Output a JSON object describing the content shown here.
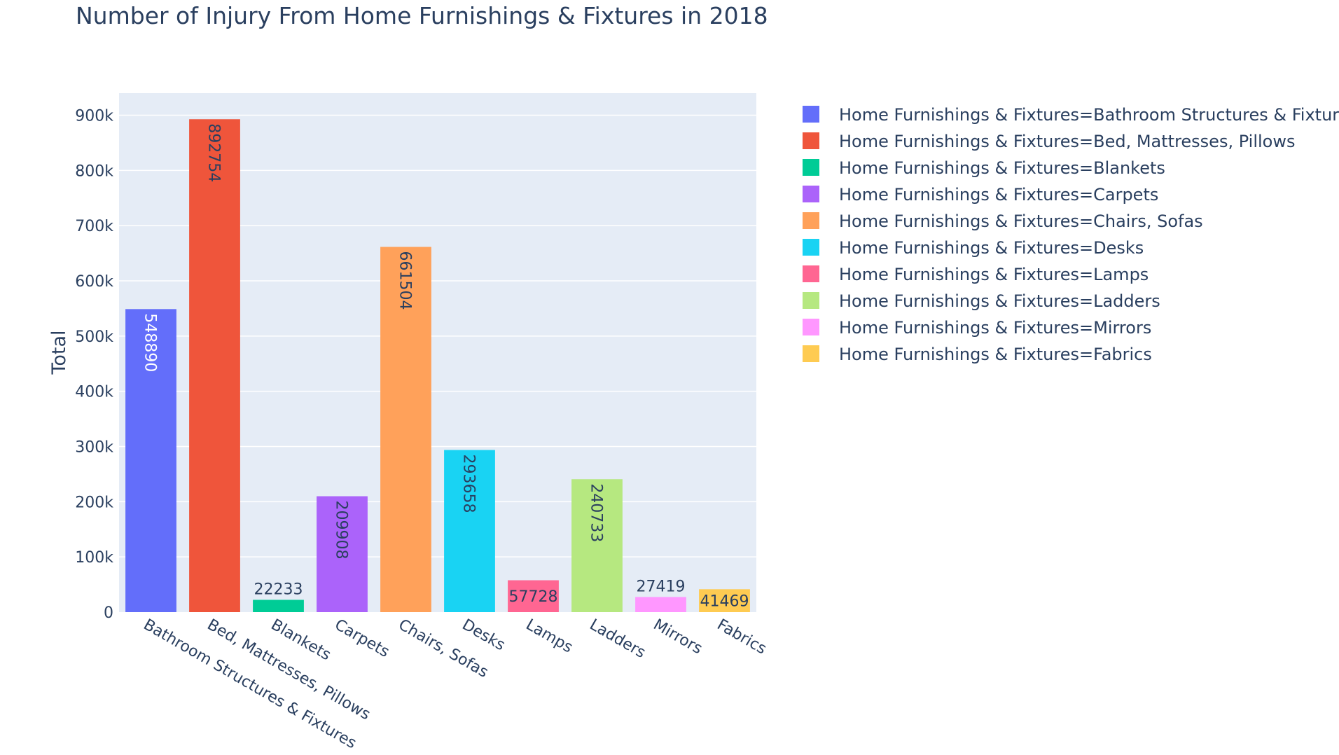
{
  "chart_data": {
    "type": "bar",
    "title": "Number of Injury From Home Furnishings & Fixtures in 2018",
    "xlabel": "",
    "ylabel": "Total",
    "ylim": [
      0,
      940000
    ],
    "yticks": [
      0,
      100000,
      200000,
      300000,
      400000,
      500000,
      600000,
      700000,
      800000,
      900000
    ],
    "ytick_labels": [
      "0",
      "100k",
      "200k",
      "300k",
      "400k",
      "500k",
      "600k",
      "700k",
      "800k",
      "900k"
    ],
    "grid": true,
    "legend_position": "right",
    "categories": [
      "Bathroom Structures & Fixtures",
      "Bed, Mattresses, Pillows",
      "Blankets",
      "Carpets",
      "Chairs, Sofas",
      "Desks",
      "Lamps",
      "Ladders",
      "Mirrors",
      "Fabrics"
    ],
    "values": [
      548890,
      892754,
      22233,
      209908,
      661504,
      293658,
      57728,
      240733,
      27419,
      41469
    ],
    "data_labels": [
      "548890",
      "892754",
      "22233",
      "209908",
      "661504",
      "293658",
      "57728",
      "240733",
      "27419",
      "41469"
    ],
    "colors": [
      "#636efa",
      "#EF553B",
      "#00cc96",
      "#ab63fa",
      "#FFA15A",
      "#19d3f3",
      "#FF6692",
      "#B6E880",
      "#FF97FF",
      "#FECB52"
    ],
    "label_colors": [
      "#ffffff",
      "#2a3f5f",
      "#2a3f5f",
      "#2a3f5f",
      "#2a3f5f",
      "#2a3f5f",
      "#2a3f5f",
      "#2a3f5f",
      "#2a3f5f",
      "#2a3f5f"
    ],
    "legend_entries": [
      "Home Furnishings & Fixtures=Bathroom Structures & Fixtures",
      "Home Furnishings & Fixtures=Bed, Mattresses, Pillows",
      "Home Furnishings & Fixtures=Blankets",
      "Home Furnishings & Fixtures=Carpets",
      "Home Furnishings & Fixtures=Chairs, Sofas",
      "Home Furnishings & Fixtures=Desks",
      "Home Furnishings & Fixtures=Lamps",
      "Home Furnishings & Fixtures=Ladders",
      "Home Furnishings & Fixtures=Mirrors",
      "Home Furnishings & Fixtures=Fabrics"
    ],
    "colors_ui": {
      "plot_background": "#e5ecf6",
      "grid": "#ffffff",
      "text": "#2a3f5f"
    }
  }
}
